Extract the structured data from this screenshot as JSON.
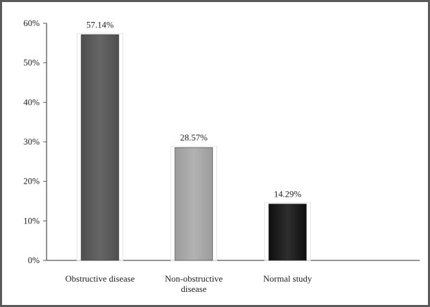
{
  "chart_data": {
    "type": "bar",
    "categories": [
      [
        "Obstructive disease"
      ],
      [
        "Non-obstructive",
        "disease"
      ],
      [
        "Normal study"
      ]
    ],
    "values": [
      57.14,
      28.57,
      14.29
    ],
    "data_labels": [
      "57.14%",
      "28.57%",
      "14.29%"
    ],
    "y_ticks": [
      "0%",
      "10%",
      "20%",
      "30%",
      "40%",
      "50%",
      "60%"
    ],
    "ylim": [
      0,
      60
    ],
    "grid": false,
    "legend": "none",
    "colors": [
      "#5c5c5c",
      "#a9a9a9",
      "#1f1f1f"
    ]
  }
}
